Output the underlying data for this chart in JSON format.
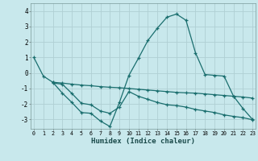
{
  "xlabel": "Humidex (Indice chaleur)",
  "bg_color": "#c8e8ec",
  "grid_color": "#b0cfd4",
  "line_color": "#1a6e6e",
  "xlim": [
    -0.3,
    23.3
  ],
  "ylim": [
    -3.6,
    4.5
  ],
  "yticks": [
    -3,
    -2,
    -1,
    0,
    1,
    2,
    3,
    4
  ],
  "xticks": [
    0,
    1,
    2,
    3,
    4,
    5,
    6,
    7,
    8,
    9,
    10,
    11,
    12,
    13,
    14,
    15,
    16,
    17,
    18,
    19,
    20,
    21,
    22,
    23
  ],
  "line1_x": [
    0,
    1,
    2,
    3,
    4,
    5,
    6,
    7,
    8,
    9,
    10,
    11,
    12,
    13,
    14,
    15,
    16,
    17,
    18,
    19,
    20,
    21,
    22,
    23
  ],
  "line1_y": [
    1.0,
    -0.2,
    -0.6,
    -1.3,
    -1.9,
    -2.55,
    -2.6,
    -3.1,
    -3.45,
    -1.9,
    -0.15,
    0.95,
    2.1,
    2.9,
    3.6,
    3.8,
    3.4,
    1.3,
    -0.1,
    -0.15,
    -0.2,
    -1.5,
    -2.3,
    -3.0
  ],
  "line2_x": [
    2,
    3,
    4,
    5,
    6,
    7,
    8,
    9,
    10,
    11,
    12,
    13,
    14,
    15,
    16,
    17,
    18,
    19,
    20,
    21,
    22,
    23
  ],
  "line2_y": [
    -0.6,
    -0.65,
    -0.72,
    -0.78,
    -0.82,
    -0.88,
    -0.92,
    -0.95,
    -1.0,
    -1.05,
    -1.1,
    -1.15,
    -1.2,
    -1.25,
    -1.28,
    -1.3,
    -1.35,
    -1.4,
    -1.45,
    -1.5,
    -1.55,
    -1.62
  ],
  "line3_x": [
    2,
    3,
    4,
    5,
    6,
    7,
    8,
    9,
    10,
    11,
    12,
    13,
    14,
    15,
    16,
    17,
    18,
    19,
    20,
    21,
    22,
    23
  ],
  "line3_y": [
    -0.65,
    -0.72,
    -1.32,
    -1.95,
    -2.05,
    -2.45,
    -2.6,
    -2.2,
    -1.2,
    -1.5,
    -1.7,
    -1.9,
    -2.05,
    -2.1,
    -2.2,
    -2.35,
    -2.45,
    -2.55,
    -2.7,
    -2.8,
    -2.88,
    -3.02
  ]
}
